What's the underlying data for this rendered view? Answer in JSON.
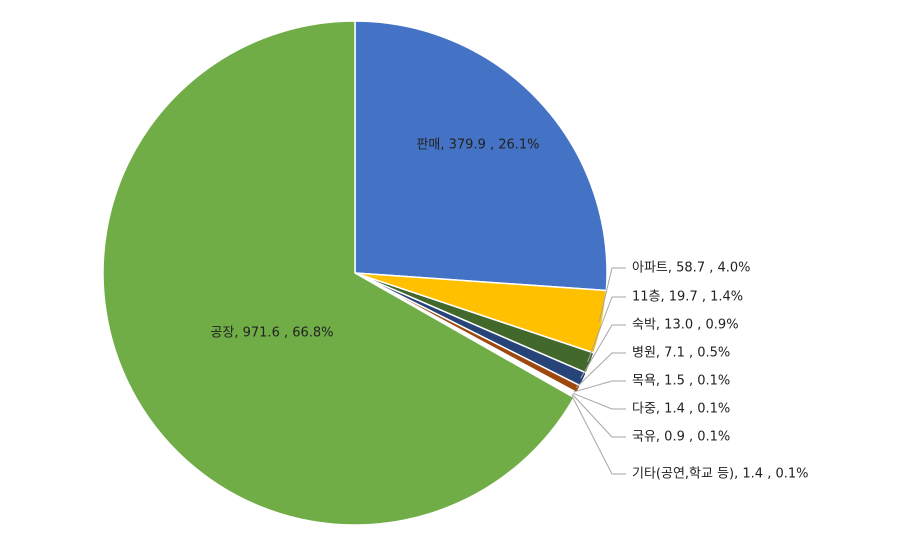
{
  "chart_data": {
    "type": "pie",
    "values": [
      379.9,
      58.7,
      19.7,
      13.0,
      7.1,
      1.5,
      1.4,
      0.9,
      1.4,
      971.6
    ],
    "value_labels": [
      "판매, 379.9 , 26.1%",
      "아파트, 58.7 , 4.0%",
      "11층, 19.7 , 1.4%",
      "숙박, 13.0 , 0.9%",
      "병원, 7.1 , 0.5%",
      "목욕, 1.5 , 0.1%",
      "다중, 1.4 , 0.1%",
      "국유, 0.9 , 0.1%",
      "기타(공연,학교 등), 1.4 , 0.1%",
      "공장, 971.6 , 66.8%"
    ],
    "colors": [
      "#4472c4",
      "#ffc000",
      "#43682b",
      "#264478",
      "#9e480e",
      "#636363",
      "#997300",
      "#255e91",
      "#7f6000",
      "#70ad47"
    ]
  }
}
